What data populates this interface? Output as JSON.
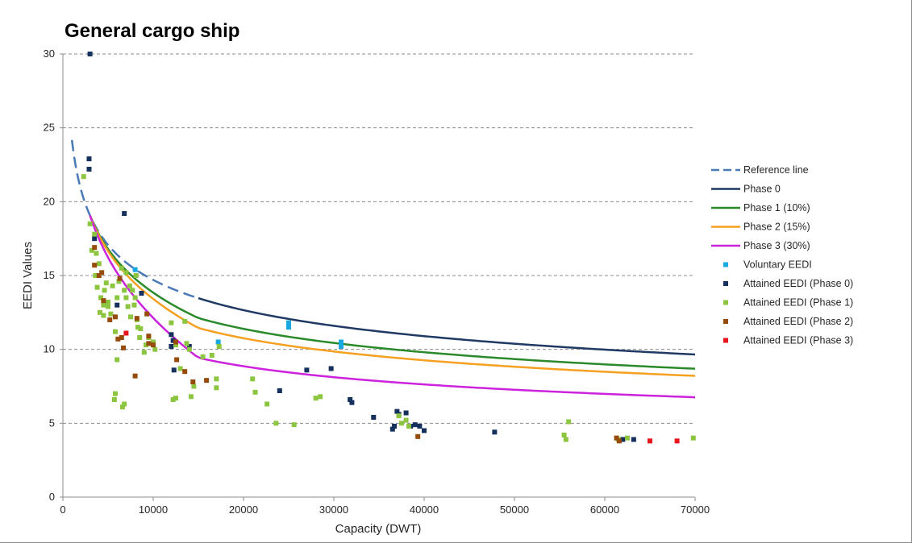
{
  "chart_data": {
    "type": "scatter",
    "title": "General cargo ship",
    "xlabel": "Capacity (DWT)",
    "ylabel": "EEDI Values",
    "xlim": [
      0,
      70000
    ],
    "ylim": [
      0,
      30
    ],
    "xticks": [
      0,
      10000,
      20000,
      30000,
      40000,
      50000,
      60000,
      70000
    ],
    "yticks": [
      0,
      5,
      10,
      15,
      20,
      25,
      30
    ],
    "grid": "horizontal dashed",
    "legend_position": "right",
    "series": [
      {
        "name": "Reference line",
        "kind": "line",
        "style": "dashed",
        "color": "#4a7ab5",
        "x_range": [
          1000,
          15000
        ],
        "formula": "107.48*DWT^-0.216"
      },
      {
        "name": "Phase 0",
        "kind": "line",
        "style": "solid",
        "color": "#1f3864",
        "x_range": [
          15000,
          70000
        ],
        "formula": "107.48*DWT^-0.216"
      },
      {
        "name": "Phase 1 (10%)",
        "kind": "line",
        "style": "solid",
        "color": "#2a8a2a",
        "x_range": [
          3000,
          70000
        ],
        "reduction_percent": 10,
        "note": "reduction factor linearly interpolated from 0% at 3000 DWT to full at 15000 DWT"
      },
      {
        "name": "Phase 2 (15%)",
        "kind": "line",
        "style": "solid",
        "color": "#f5a020",
        "x_range": [
          3000,
          70000
        ],
        "reduction_percent": 15
      },
      {
        "name": "Phase 3 (30%)",
        "kind": "line",
        "style": "solid",
        "color": "#cc22dd",
        "x_range": [
          3000,
          70000
        ],
        "reduction_percent": 30
      },
      {
        "name": "Voluntary EEDI",
        "kind": "scatter",
        "color": "#1aa8e0",
        "points": [
          [
            8000,
            15.4
          ],
          [
            25000,
            11.8
          ],
          [
            25000,
            11.5
          ],
          [
            30800,
            10.5
          ],
          [
            30800,
            10.2
          ],
          [
            17200,
            10.5
          ]
        ]
      },
      {
        "name": "Attained EEDI (Phase 0)",
        "kind": "scatter",
        "color": "#16305e",
        "points": [
          [
            3000,
            30
          ],
          [
            2900,
            22.9
          ],
          [
            2900,
            22.2
          ],
          [
            6800,
            19.2
          ],
          [
            3500,
            17.5
          ],
          [
            6000,
            13
          ],
          [
            8700,
            13.8
          ],
          [
            12000,
            11
          ],
          [
            12200,
            10.6
          ],
          [
            12000,
            10.2
          ],
          [
            12300,
            8.6
          ],
          [
            14000,
            10.2
          ],
          [
            24000,
            7.2
          ],
          [
            27000,
            8.6
          ],
          [
            29700,
            8.7
          ],
          [
            31800,
            6.6
          ],
          [
            32000,
            6.4
          ],
          [
            34400,
            5.4
          ],
          [
            36500,
            4.6
          ],
          [
            36700,
            4.8
          ],
          [
            37000,
            5.8
          ],
          [
            37200,
            5.6
          ],
          [
            38000,
            5.7
          ],
          [
            38500,
            4.8
          ],
          [
            39000,
            4.9
          ],
          [
            39500,
            4.8
          ],
          [
            40000,
            4.5
          ],
          [
            47800,
            4.4
          ],
          [
            63200,
            3.9
          ],
          [
            62000,
            3.9
          ]
        ]
      },
      {
        "name": "Attained EEDI (Phase 1)",
        "kind": "scatter",
        "color": "#8cc640",
        "points": [
          [
            2300,
            21.7
          ],
          [
            3000,
            18.5
          ],
          [
            3500,
            17.8
          ],
          [
            3700,
            16.5
          ],
          [
            3600,
            15.0
          ],
          [
            4000,
            15.8
          ],
          [
            3800,
            14.2
          ],
          [
            4200,
            13.5
          ],
          [
            4500,
            13.0
          ],
          [
            4800,
            14.5
          ],
          [
            5000,
            13.2
          ],
          [
            5300,
            12.4
          ],
          [
            5800,
            11.2
          ],
          [
            6000,
            13.5
          ],
          [
            6200,
            14.6
          ],
          [
            6500,
            15.5
          ],
          [
            6800,
            14.0
          ],
          [
            7000,
            13.5
          ],
          [
            7200,
            12.9
          ],
          [
            7500,
            12.2
          ],
          [
            7700,
            14.0
          ],
          [
            8000,
            13.5
          ],
          [
            8200,
            12.0
          ],
          [
            8300,
            11.5
          ],
          [
            8500,
            10.8
          ],
          [
            9000,
            9.8
          ],
          [
            9200,
            10.3
          ],
          [
            9500,
            10.8
          ],
          [
            10000,
            10.5
          ],
          [
            4500,
            12.3
          ],
          [
            5000,
            12.9
          ],
          [
            5500,
            14.3
          ],
          [
            6000,
            9.3
          ],
          [
            5800,
            7.0
          ],
          [
            5700,
            6.6
          ],
          [
            6600,
            6.1
          ],
          [
            6800,
            6.3
          ],
          [
            12000,
            11.8
          ],
          [
            12500,
            10.3
          ],
          [
            12200,
            6.6
          ],
          [
            12500,
            6.7
          ],
          [
            13000,
            8.7
          ],
          [
            13500,
            11.9
          ],
          [
            13700,
            10.4
          ],
          [
            14000,
            10.0
          ],
          [
            14200,
            6.8
          ],
          [
            14500,
            7.5
          ],
          [
            15500,
            9.5
          ],
          [
            16500,
            9.6
          ],
          [
            17000,
            8.0
          ],
          [
            17000,
            7.4
          ],
          [
            17300,
            10.2
          ],
          [
            21000,
            8.0
          ],
          [
            21300,
            7.1
          ],
          [
            22600,
            6.3
          ],
          [
            23600,
            5.0
          ],
          [
            25600,
            4.9
          ],
          [
            28000,
            6.7
          ],
          [
            28500,
            6.8
          ],
          [
            37200,
            5.5
          ],
          [
            37500,
            5.0
          ],
          [
            38000,
            5.2
          ],
          [
            38300,
            4.8
          ],
          [
            55500,
            4.2
          ],
          [
            55700,
            3.9
          ],
          [
            56000,
            5.1
          ],
          [
            61500,
            3.9
          ],
          [
            62500,
            4.0
          ],
          [
            69800,
            4.0
          ],
          [
            7000,
            15.2
          ],
          [
            7400,
            14.3
          ],
          [
            7900,
            13.0
          ],
          [
            8100,
            15.0
          ],
          [
            8600,
            11.4
          ],
          [
            3200,
            16.7
          ],
          [
            4100,
            12.5
          ],
          [
            4600,
            14.0
          ],
          [
            10200,
            10.0
          ]
        ]
      },
      {
        "name": "Attained EEDI (Phase 2)",
        "kind": "scatter",
        "color": "#964b0a",
        "points": [
          [
            3500,
            16.9
          ],
          [
            3500,
            15.7
          ],
          [
            4000,
            15.0
          ],
          [
            4300,
            15.2
          ],
          [
            4500,
            13.3
          ],
          [
            5200,
            12.0
          ],
          [
            5800,
            12.2
          ],
          [
            6100,
            10.7
          ],
          [
            6500,
            10.8
          ],
          [
            6700,
            10.1
          ],
          [
            6300,
            14.8
          ],
          [
            8000,
            8.2
          ],
          [
            8200,
            12.1
          ],
          [
            9300,
            12.4
          ],
          [
            9500,
            10.4
          ],
          [
            9500,
            10.9
          ],
          [
            10000,
            10.3
          ],
          [
            12500,
            10.5
          ],
          [
            12600,
            9.3
          ],
          [
            13500,
            8.5
          ],
          [
            14400,
            7.8
          ],
          [
            15900,
            7.9
          ],
          [
            39300,
            4.1
          ],
          [
            61300,
            4.0
          ],
          [
            61600,
            3.8
          ]
        ]
      },
      {
        "name": "Attained EEDI (Phase 3)",
        "kind": "scatter",
        "color": "#e8141c",
        "points": [
          [
            7000,
            11.1
          ],
          [
            65000,
            3.8
          ],
          [
            68000,
            3.8
          ]
        ]
      }
    ]
  }
}
